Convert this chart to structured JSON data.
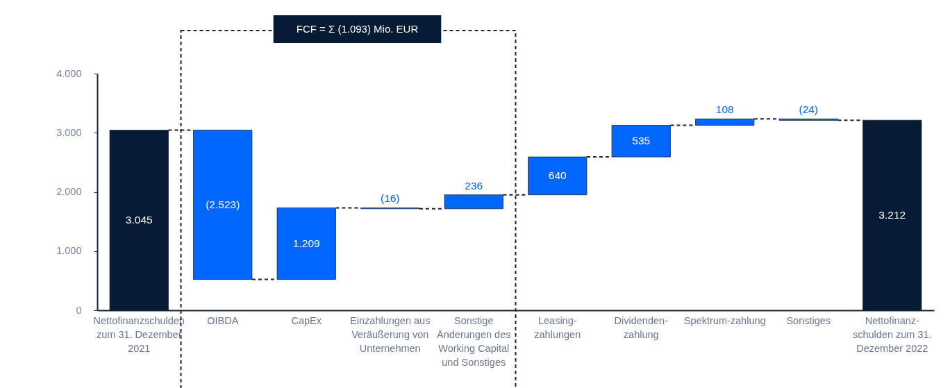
{
  "chart_data": {
    "type": "bar",
    "categories": [
      "Nettofinanzschulden zum 31. Dezember 2021",
      "OIBDA",
      "CapEx",
      "Einzahlungen aus Veräußerung von Unternehmen",
      "Sonstige Änderungen des Working Capital und Sonstiges",
      "Leasing-zahlungen",
      "Dividenden-zahlung",
      "Spektrum-zahlung",
      "Sonstiges",
      "Nettofinanz-schulden zum 31. Dezember 2022"
    ],
    "values": [
      3045,
      -2523,
      1209,
      -16,
      236,
      640,
      535,
      108,
      -24,
      3212
    ],
    "base": [
      0,
      3045,
      522,
      1731,
      1715,
      1951,
      2591,
      3126,
      3234,
      0
    ],
    "colors": [
      "#051a33",
      "#0066ff",
      "#0066ff",
      "#0066ff",
      "#0066ff",
      "#0066ff",
      "#0066ff",
      "#0066ff",
      "#0066ff",
      "#051a33"
    ],
    "value_labels": [
      "3.045",
      "(2.523)",
      "1.209",
      "(16)",
      "236",
      "640",
      "535",
      "108",
      "(24)",
      "3.212"
    ],
    "ylim": [
      0,
      4000
    ],
    "yticks": [
      {
        "value": 0,
        "label": "0"
      },
      {
        "value": 1000,
        "label": "1.000"
      },
      {
        "value": 2000,
        "label": "2.000"
      },
      {
        "value": 3000,
        "label": "3.000"
      },
      {
        "value": 4000,
        "label": "4.000"
      }
    ],
    "annotations": [
      "FCF = Σ (1.093) Mio. EUR"
    ]
  }
}
